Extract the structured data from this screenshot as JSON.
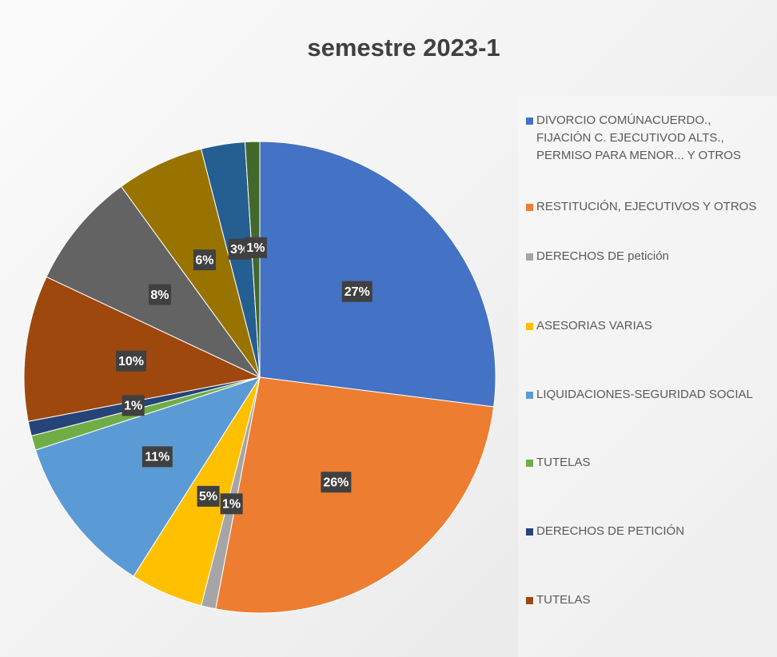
{
  "chart_data": {
    "type": "pie",
    "title": "semestre 2023-1",
    "categories": [
      "DIVORCIO COMÚNACUERDO., FIJACIÓN C. EJECUTIVOD ALTS., PERMISO PARA MENOR... Y OTROS",
      "RESTITUCIÓN, EJECUTIVOS Y OTROS",
      "DERECHOS DE petición",
      "ASESORIAS VARIAS",
      "LIQUIDACIONES-SEGURIDAD SOCIAL",
      "TUTELAS",
      "DERECHOS DE PETICIÓN",
      "TUTELAS",
      null,
      null,
      null,
      null
    ],
    "values": [
      27,
      26,
      1,
      5,
      11,
      1,
      1,
      10,
      8,
      6,
      3,
      1
    ],
    "value_labels": [
      "27%",
      "26%",
      "1%",
      "5%",
      "11%",
      null,
      "1%",
      "10%",
      "8%",
      "6%",
      "3%",
      "1%"
    ],
    "colors": [
      "#4472c4",
      "#ed7d31",
      "#a5a5a5",
      "#ffc000",
      "#5b9bd5",
      "#70ad47",
      "#264478",
      "#9e480e",
      "#636363",
      "#997300",
      "#255e91",
      "#43682b"
    ],
    "legend": "right"
  }
}
